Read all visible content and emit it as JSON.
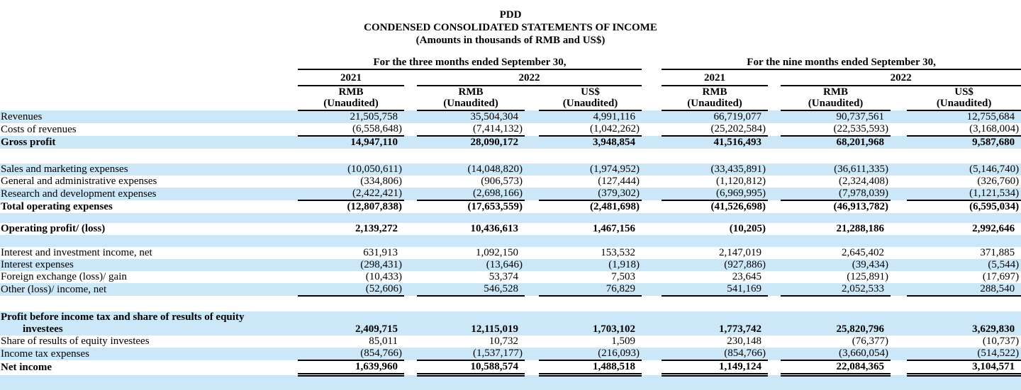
{
  "colors": {
    "stripe_blue": "#cbe7f8",
    "text": "#000000",
    "page_background": "#ffffff"
  },
  "title": {
    "company": "PDD",
    "statement": "CONDENSED CONSOLIDATED STATEMENTS OF INCOME",
    "note": "(Amounts in thousands of RMB and US$)"
  },
  "table": {
    "header": {
      "groups": [
        {
          "title": "For the three months ended September 30,"
        },
        {
          "title": "For the nine months ended September 30,"
        }
      ],
      "years": [
        "2021",
        "2022",
        "2021",
        "2022"
      ],
      "columns": [
        {
          "currency": "RMB",
          "unaudited": "(Unaudited)"
        },
        {
          "currency": "RMB",
          "unaudited": "(Unaudited)"
        },
        {
          "currency": "US$",
          "unaudited": "(Unaudited)"
        },
        {
          "currency": "RMB",
          "unaudited": "(Unaudited)"
        },
        {
          "currency": "RMB",
          "unaudited": "(Unaudited)"
        },
        {
          "currency": "US$",
          "unaudited": "(Unaudited)"
        }
      ]
    },
    "rows": [
      {
        "label": "Revenues",
        "stripe": true,
        "bold": false,
        "underline": "none",
        "values": [
          "21,505,758",
          "35,504,304",
          "4,991,116",
          "66,719,077",
          "90,737,561",
          "12,755,684"
        ]
      },
      {
        "label": "Costs of revenues",
        "stripe": false,
        "bold": false,
        "underline": "single",
        "values": [
          "(6,558,648)",
          "(7,414,132)",
          "(1,042,262)",
          "(25,202,584)",
          "(22,535,593)",
          "(3,168,004)"
        ]
      },
      {
        "label": "Gross profit",
        "stripe": true,
        "bold": true,
        "underline": "none",
        "values": [
          "14,947,110",
          "28,090,172",
          "3,948,854",
          "41,516,493",
          "68,201,968",
          "9,587,680"
        ]
      },
      {
        "type": "spacer",
        "stripe": false,
        "height": 21
      },
      {
        "label": "Sales and marketing expenses",
        "stripe": true,
        "bold": false,
        "underline": "none",
        "values": [
          "(10,050,611)",
          "(14,048,820)",
          "(1,974,952)",
          "(33,435,891)",
          "(36,611,335)",
          "(5,146,740)"
        ]
      },
      {
        "label": "General and administrative expenses",
        "stripe": false,
        "bold": false,
        "underline": "none",
        "values": [
          "(334,806)",
          "(906,573)",
          "(127,444)",
          "(1,120,812)",
          "(2,324,408)",
          "(326,760)"
        ]
      },
      {
        "label": "Research and development expenses",
        "stripe": true,
        "bold": false,
        "underline": "single",
        "values": [
          "(2,422,421)",
          "(2,698,166)",
          "(379,302)",
          "(6,969,995)",
          "(7,978,039)",
          "(1,121,534)"
        ]
      },
      {
        "label": "Total operating expenses",
        "stripe": false,
        "bold": true,
        "underline": "none",
        "values": [
          "(12,807,838)",
          "(17,653,559)",
          "(2,481,698)",
          "(41,526,698)",
          "(46,913,782)",
          "(6,595,034)"
        ]
      },
      {
        "type": "spacer",
        "stripe": true,
        "height": 14
      },
      {
        "label": "Operating profit/ (loss)",
        "stripe": false,
        "bold": true,
        "underline": "none",
        "values": [
          "2,139,272",
          "10,436,613",
          "1,467,156",
          "(10,205)",
          "21,288,186",
          "2,992,646"
        ]
      },
      {
        "type": "spacer",
        "stripe": true,
        "height": 17
      },
      {
        "label": "Interest and investment income, net",
        "stripe": false,
        "bold": false,
        "underline": "none",
        "values": [
          "631,913",
          "1,092,150",
          "153,532",
          "2,147,019",
          "2,645,402",
          "371,885"
        ]
      },
      {
        "label": "Interest expenses",
        "stripe": true,
        "bold": false,
        "underline": "none",
        "values": [
          "(298,431)",
          "(13,646)",
          "(1,918)",
          "(927,886)",
          "(39,434)",
          "(5,544)"
        ]
      },
      {
        "label": "Foreign exchange (loss)/ gain",
        "stripe": false,
        "bold": false,
        "underline": "none",
        "values": [
          "(10,433)",
          "53,374",
          "7,503",
          "23,645",
          "(125,891)",
          "(17,697)"
        ]
      },
      {
        "label": "Other (loss)/ income, net",
        "stripe": true,
        "bold": false,
        "underline": "single",
        "values": [
          "(52,606)",
          "546,528",
          "76,829",
          "541,169",
          "2,052,533",
          "288,540"
        ]
      },
      {
        "type": "spacer",
        "stripe": false,
        "height": 21
      },
      {
        "label": "Profit before income tax and share of results of equity",
        "stripe": true,
        "bold": true,
        "underline": "none",
        "values": [
          "",
          "",
          "",
          "",
          "",
          ""
        ]
      },
      {
        "label": "investees",
        "indent": true,
        "stripe": true,
        "bold": true,
        "underline": "none",
        "values": [
          "2,409,715",
          "12,115,019",
          "1,703,102",
          "1,773,742",
          "25,820,796",
          "3,629,830"
        ]
      },
      {
        "label": "Share of results of equity investees",
        "stripe": false,
        "bold": false,
        "underline": "none",
        "values": [
          "85,011",
          "10,732",
          "1,509",
          "230,148",
          "(76,377)",
          "(10,737)"
        ]
      },
      {
        "label": "Income tax expenses",
        "stripe": true,
        "bold": false,
        "underline": "single",
        "values": [
          "(854,766)",
          "(1,537,177)",
          "(216,093)",
          "(854,766)",
          "(3,660,054)",
          "(514,522)"
        ]
      },
      {
        "label": "Net income",
        "stripe": false,
        "bold": true,
        "underline": "double",
        "values": [
          "1,639,960",
          "10,588,574",
          "1,488,518",
          "1,149,124",
          "22,084,365",
          "3,104,571"
        ]
      },
      {
        "type": "spacer",
        "stripe": true,
        "height": 19
      }
    ]
  }
}
